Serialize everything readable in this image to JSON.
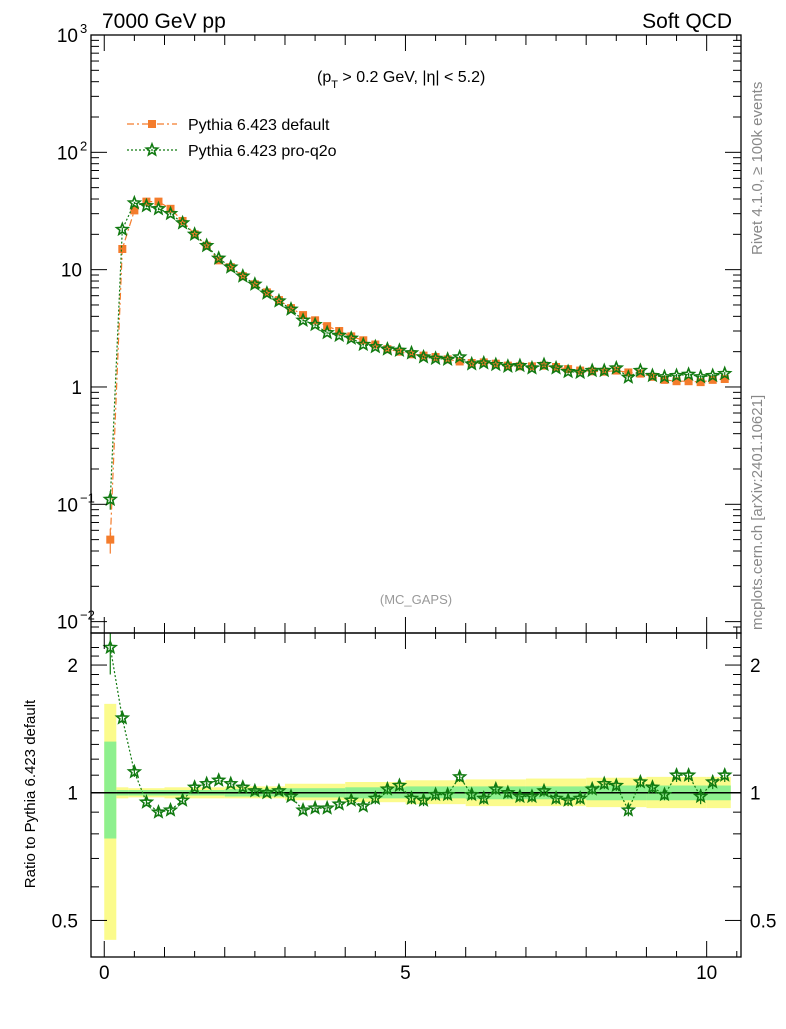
{
  "header": {
    "left": "7000 GeV pp",
    "right": "Soft QCD"
  },
  "side_text": {
    "rivet": "Rivet 4.1.0, ≥ 100k events",
    "mcplots": "mcplots.cern.ch [arXiv:2401.10621]"
  },
  "colors": {
    "default": "#f47c2c",
    "proq2o": "#117a11",
    "band_inner": "#8ef08e",
    "band_outer": "#fbfb8c"
  },
  "chart_data": [
    {
      "type": "scatter",
      "panel": "main",
      "annotation": "(p_T > 0.2 GeV, |η| < 5.2)",
      "watermark": "(MC_GAPS)",
      "yscale": "log",
      "ylim": [
        0.008,
        1000
      ],
      "xlim": [
        -0.22,
        10.57
      ],
      "y_ticklabels": [
        {
          "value": 0.01,
          "base": "10",
          "exp": "−2"
        },
        {
          "value": 0.1,
          "base": "10",
          "exp": "−1"
        },
        {
          "value": 1,
          "base": "1",
          "exp": ""
        },
        {
          "value": 10,
          "base": "10",
          "exp": ""
        },
        {
          "value": 100,
          "base": "10",
          "exp": "2"
        },
        {
          "value": 1000,
          "base": "10",
          "exp": "3"
        }
      ],
      "legend": [
        {
          "label": "Pythia 6.423 default",
          "marker": "square",
          "line": "dashdot"
        },
        {
          "label": "Pythia 6.423 pro-q2o",
          "marker": "star",
          "line": "dotted"
        }
      ],
      "x": [
        0.1,
        0.3,
        0.5,
        0.7,
        0.9,
        1.1,
        1.3,
        1.5,
        1.7,
        1.9,
        2.1,
        2.3,
        2.5,
        2.7,
        2.9,
        3.1,
        3.3,
        3.5,
        3.7,
        3.9,
        4.1,
        4.3,
        4.5,
        4.7,
        4.9,
        5.1,
        5.3,
        5.5,
        5.7,
        5.9,
        6.1,
        6.3,
        6.5,
        6.7,
        6.9,
        7.1,
        7.3,
        7.5,
        7.7,
        7.9,
        8.1,
        8.3,
        8.5,
        8.7,
        8.9,
        9.1,
        9.3,
        9.5,
        9.7,
        9.9,
        10.1,
        10.3
      ],
      "series": [
        {
          "name": "Pythia 6.423 default",
          "values": [
            0.05,
            15,
            32,
            38,
            38,
            33,
            26,
            20,
            16,
            12,
            10.5,
            8.8,
            7.5,
            6.4,
            5.5,
            4.7,
            4.1,
            3.7,
            3.3,
            3.0,
            2.7,
            2.5,
            2.3,
            2.1,
            2.0,
            1.9,
            1.85,
            1.8,
            1.72,
            1.65,
            1.6,
            1.62,
            1.58,
            1.52,
            1.5,
            1.5,
            1.52,
            1.48,
            1.42,
            1.38,
            1.36,
            1.35,
            1.38,
            1.33,
            1.3,
            1.22,
            1.15,
            1.12,
            1.12,
            1.1,
            1.15,
            1.17
          ],
          "err": [
            0.012,
            0.6,
            0.8,
            0.8,
            0.8,
            0.7,
            0.5,
            0.4,
            0.3,
            0.25,
            0.2,
            0.16,
            0.14,
            0.12,
            0.1,
            0.09,
            0.08,
            0.07,
            0.06,
            0.06,
            0.05,
            0.05,
            0.05,
            0.04,
            0.04,
            0.04,
            0.04,
            0.04,
            0.04,
            0.04,
            0.04,
            0.04,
            0.04,
            0.04,
            0.04,
            0.04,
            0.04,
            0.04,
            0.04,
            0.04,
            0.04,
            0.04,
            0.04,
            0.04,
            0.04,
            0.04,
            0.04,
            0.04,
            0.04,
            0.04,
            0.04,
            0.04
          ]
        },
        {
          "name": "Pythia 6.423 pro-q2o",
          "values": [
            0.11,
            22,
            37,
            35,
            33,
            30,
            25,
            20,
            16,
            12.5,
            10.5,
            8.8,
            7.5,
            6.3,
            5.4,
            4.6,
            3.7,
            3.4,
            2.9,
            2.75,
            2.6,
            2.3,
            2.2,
            2.1,
            2.05,
            1.95,
            1.8,
            1.75,
            1.72,
            1.8,
            1.57,
            1.6,
            1.55,
            1.5,
            1.52,
            1.45,
            1.55,
            1.45,
            1.35,
            1.33,
            1.38,
            1.38,
            1.45,
            1.21,
            1.38,
            1.25,
            1.22,
            1.25,
            1.28,
            1.22,
            1.25,
            1.3
          ],
          "err": [
            0.02,
            0.8,
            0.8,
            0.8,
            0.8,
            0.7,
            0.5,
            0.4,
            0.3,
            0.25,
            0.2,
            0.16,
            0.14,
            0.12,
            0.1,
            0.09,
            0.08,
            0.07,
            0.06,
            0.06,
            0.05,
            0.05,
            0.05,
            0.04,
            0.04,
            0.04,
            0.04,
            0.04,
            0.04,
            0.04,
            0.04,
            0.04,
            0.04,
            0.04,
            0.04,
            0.04,
            0.04,
            0.04,
            0.04,
            0.04,
            0.04,
            0.04,
            0.04,
            0.04,
            0.04,
            0.04,
            0.04,
            0.04,
            0.04,
            0.04,
            0.04,
            0.04
          ]
        }
      ]
    },
    {
      "type": "scatter",
      "panel": "ratio",
      "ylabel": "Ratio to Pythia 6.423 default",
      "yscale": "log",
      "ylim": [
        0.41,
        2.38
      ],
      "xlim": [
        -0.22,
        10.57
      ],
      "x_ticklabels": [
        "0",
        "5",
        "10"
      ],
      "y_ticklabels": [
        "0.5",
        "1",
        "2"
      ],
      "reference_line": 1,
      "x": [
        0.1,
        0.3,
        0.5,
        0.7,
        0.9,
        1.1,
        1.3,
        1.5,
        1.7,
        1.9,
        2.1,
        2.3,
        2.5,
        2.7,
        2.9,
        3.1,
        3.3,
        3.5,
        3.7,
        3.9,
        4.1,
        4.3,
        4.5,
        4.7,
        4.9,
        5.1,
        5.3,
        5.5,
        5.7,
        5.9,
        6.1,
        6.3,
        6.5,
        6.7,
        6.9,
        7.1,
        7.3,
        7.5,
        7.7,
        7.9,
        8.1,
        8.3,
        8.5,
        8.7,
        8.9,
        9.1,
        9.3,
        9.5,
        9.7,
        9.9,
        10.1,
        10.3
      ],
      "series": [
        {
          "name": "Pythia 6.423 pro-q2o / default",
          "values": [
            2.2,
            1.5,
            1.12,
            0.95,
            0.9,
            0.91,
            0.96,
            1.03,
            1.05,
            1.07,
            1.05,
            1.03,
            1.01,
            1.0,
            1.01,
            0.98,
            0.91,
            0.92,
            0.92,
            0.94,
            0.96,
            0.93,
            0.97,
            1.02,
            1.04,
            0.97,
            0.96,
            0.99,
            0.99,
            1.09,
            0.99,
            0.97,
            1.02,
            1.0,
            0.98,
            0.98,
            1.01,
            0.97,
            0.96,
            0.97,
            1.02,
            1.05,
            1.04,
            0.91,
            1.06,
            1.03,
            0.99,
            1.1,
            1.1,
            0.98,
            1.06,
            1.1
          ],
          "err": [
            0.3,
            0.04,
            0.03,
            0.02,
            0.02,
            0.02,
            0.02,
            0.02,
            0.02,
            0.02,
            0.02,
            0.02,
            0.02,
            0.02,
            0.02,
            0.02,
            0.02,
            0.02,
            0.02,
            0.02,
            0.02,
            0.02,
            0.03,
            0.03,
            0.03,
            0.03,
            0.03,
            0.03,
            0.03,
            0.03,
            0.03,
            0.03,
            0.03,
            0.03,
            0.03,
            0.03,
            0.03,
            0.03,
            0.03,
            0.03,
            0.03,
            0.03,
            0.03,
            0.03,
            0.03,
            0.03,
            0.03,
            0.04,
            0.04,
            0.04,
            0.04,
            0.04
          ]
        }
      ],
      "bands": {
        "x_edges": [
          0,
          0.2,
          0.4,
          1,
          2,
          3,
          4,
          5,
          6,
          7,
          8,
          9,
          10,
          10.4
        ],
        "inner": [
          [
            0.78,
            1.32
          ],
          [
            0.985,
            1.015
          ],
          [
            0.985,
            1.015
          ],
          [
            0.985,
            1.015
          ],
          [
            0.98,
            1.02
          ],
          [
            0.975,
            1.025
          ],
          [
            0.97,
            1.03
          ],
          [
            0.97,
            1.035
          ],
          [
            0.965,
            1.035
          ],
          [
            0.965,
            1.035
          ],
          [
            0.96,
            1.04
          ],
          [
            0.96,
            1.04
          ],
          [
            0.96,
            1.04
          ]
        ],
        "outer": [
          [
            0.45,
            1.62
          ],
          [
            0.97,
            1.03
          ],
          [
            0.975,
            1.025
          ],
          [
            0.97,
            1.03
          ],
          [
            0.97,
            1.035
          ],
          [
            0.96,
            1.05
          ],
          [
            0.95,
            1.06
          ],
          [
            0.94,
            1.07
          ],
          [
            0.93,
            1.075
          ],
          [
            0.93,
            1.08
          ],
          [
            0.925,
            1.085
          ],
          [
            0.92,
            1.09
          ],
          [
            0.92,
            1.09
          ]
        ]
      }
    }
  ]
}
